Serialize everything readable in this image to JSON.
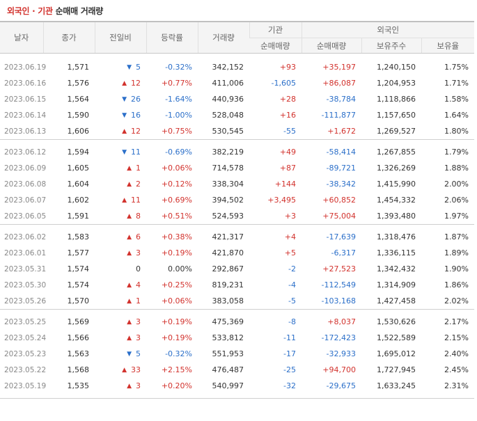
{
  "title": {
    "highlight": "외국인 · 기관",
    "rest": "순매매 거래량"
  },
  "headers": {
    "date": "날자",
    "close": "종가",
    "change": "전일비",
    "rate": "등락률",
    "volume": "거래량",
    "inst_group": "기관",
    "foreign_group": "외국인",
    "inst_net": "순매매량",
    "foreign_net": "순매매량",
    "holdings": "보유주수",
    "ratio": "보유율"
  },
  "groups": [
    [
      {
        "date": "2023.06.19",
        "close": "1,571",
        "dir": "down",
        "change": "5",
        "rate": "-0.32%",
        "volume": "342,152",
        "inst": "+93",
        "foreign": "+35,197",
        "holdings": "1,240,150",
        "ratio": "1.75%"
      },
      {
        "date": "2023.06.16",
        "close": "1,576",
        "dir": "up",
        "change": "12",
        "rate": "+0.77%",
        "volume": "411,006",
        "inst": "-1,605",
        "foreign": "+86,087",
        "holdings": "1,204,953",
        "ratio": "1.71%"
      },
      {
        "date": "2023.06.15",
        "close": "1,564",
        "dir": "down",
        "change": "26",
        "rate": "-1.64%",
        "volume": "440,936",
        "inst": "+28",
        "foreign": "-38,784",
        "holdings": "1,118,866",
        "ratio": "1.58%"
      },
      {
        "date": "2023.06.14",
        "close": "1,590",
        "dir": "down",
        "change": "16",
        "rate": "-1.00%",
        "volume": "528,048",
        "inst": "+16",
        "foreign": "-111,877",
        "holdings": "1,157,650",
        "ratio": "1.64%"
      },
      {
        "date": "2023.06.13",
        "close": "1,606",
        "dir": "up",
        "change": "12",
        "rate": "+0.75%",
        "volume": "530,545",
        "inst": "-55",
        "foreign": "+1,672",
        "holdings": "1,269,527",
        "ratio": "1.80%"
      }
    ],
    [
      {
        "date": "2023.06.12",
        "close": "1,594",
        "dir": "down",
        "change": "11",
        "rate": "-0.69%",
        "volume": "382,219",
        "inst": "+49",
        "foreign": "-58,414",
        "holdings": "1,267,855",
        "ratio": "1.79%"
      },
      {
        "date": "2023.06.09",
        "close": "1,605",
        "dir": "up",
        "change": "1",
        "rate": "+0.06%",
        "volume": "714,578",
        "inst": "+87",
        "foreign": "-89,721",
        "holdings": "1,326,269",
        "ratio": "1.88%"
      },
      {
        "date": "2023.06.08",
        "close": "1,604",
        "dir": "up",
        "change": "2",
        "rate": "+0.12%",
        "volume": "338,304",
        "inst": "+144",
        "foreign": "-38,342",
        "holdings": "1,415,990",
        "ratio": "2.00%"
      },
      {
        "date": "2023.06.07",
        "close": "1,602",
        "dir": "up",
        "change": "11",
        "rate": "+0.69%",
        "volume": "394,502",
        "inst": "+3,495",
        "foreign": "+60,852",
        "holdings": "1,454,332",
        "ratio": "2.06%"
      },
      {
        "date": "2023.06.05",
        "close": "1,591",
        "dir": "up",
        "change": "8",
        "rate": "+0.51%",
        "volume": "524,593",
        "inst": "+3",
        "foreign": "+75,004",
        "holdings": "1,393,480",
        "ratio": "1.97%"
      }
    ],
    [
      {
        "date": "2023.06.02",
        "close": "1,583",
        "dir": "up",
        "change": "6",
        "rate": "+0.38%",
        "volume": "421,317",
        "inst": "+4",
        "foreign": "-17,639",
        "holdings": "1,318,476",
        "ratio": "1.87%"
      },
      {
        "date": "2023.06.01",
        "close": "1,577",
        "dir": "up",
        "change": "3",
        "rate": "+0.19%",
        "volume": "421,870",
        "inst": "+5",
        "foreign": "-6,317",
        "holdings": "1,336,115",
        "ratio": "1.89%"
      },
      {
        "date": "2023.05.31",
        "close": "1,574",
        "dir": "none",
        "change": "0",
        "rate": "0.00%",
        "volume": "292,867",
        "inst": "-2",
        "foreign": "+27,523",
        "holdings": "1,342,432",
        "ratio": "1.90%"
      },
      {
        "date": "2023.05.30",
        "close": "1,574",
        "dir": "up",
        "change": "4",
        "rate": "+0.25%",
        "volume": "819,231",
        "inst": "-4",
        "foreign": "-112,549",
        "holdings": "1,314,909",
        "ratio": "1.86%"
      },
      {
        "date": "2023.05.26",
        "close": "1,570",
        "dir": "up",
        "change": "1",
        "rate": "+0.06%",
        "volume": "383,058",
        "inst": "-5",
        "foreign": "-103,168",
        "holdings": "1,427,458",
        "ratio": "2.02%"
      }
    ],
    [
      {
        "date": "2023.05.25",
        "close": "1,569",
        "dir": "up",
        "change": "3",
        "rate": "+0.19%",
        "volume": "475,369",
        "inst": "-8",
        "foreign": "+8,037",
        "holdings": "1,530,626",
        "ratio": "2.17%"
      },
      {
        "date": "2023.05.24",
        "close": "1,566",
        "dir": "up",
        "change": "3",
        "rate": "+0.19%",
        "volume": "533,812",
        "inst": "-11",
        "foreign": "-172,423",
        "holdings": "1,522,589",
        "ratio": "2.15%"
      },
      {
        "date": "2023.05.23",
        "close": "1,563",
        "dir": "down",
        "change": "5",
        "rate": "-0.32%",
        "volume": "551,953",
        "inst": "-17",
        "foreign": "-32,933",
        "holdings": "1,695,012",
        "ratio": "2.40%"
      },
      {
        "date": "2023.05.22",
        "close": "1,568",
        "dir": "up",
        "change": "33",
        "rate": "+2.15%",
        "volume": "476,487",
        "inst": "-25",
        "foreign": "+94,700",
        "holdings": "1,727,945",
        "ratio": "2.45%"
      },
      {
        "date": "2023.05.19",
        "close": "1,535",
        "dir": "up",
        "change": "3",
        "rate": "+0.20%",
        "volume": "540,997",
        "inst": "-32",
        "foreign": "-29,675",
        "holdings": "1,633,245",
        "ratio": "2.31%"
      }
    ]
  ],
  "arrow_up": "▲",
  "arrow_down": "▼",
  "colors": {
    "up": "#d2322d",
    "down": "#2b6fc9"
  }
}
